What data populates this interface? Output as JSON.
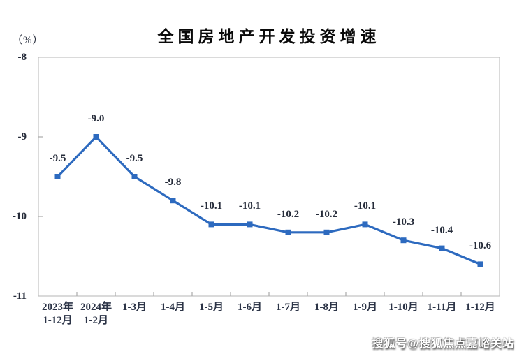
{
  "chart_data": {
    "type": "line",
    "title": "全国房地产开发投资增速",
    "unit": "（%）",
    "xlabel": "",
    "ylabel": "（%）",
    "categories": [
      "2023年\n1-12月",
      "2024年\n1-2月",
      "1-3月",
      "1-4月",
      "1-5月",
      "1-6月",
      "1-7月",
      "1-8月",
      "1-9月",
      "1-10月",
      "1-11月",
      "1-12月"
    ],
    "series": [
      {
        "name": "全国房地产开发投资增速",
        "values": [
          -9.5,
          -9.0,
          -9.5,
          -9.8,
          -10.1,
          -10.1,
          -10.2,
          -10.2,
          -10.1,
          -10.3,
          -10.4,
          -10.6
        ],
        "point_labels": [
          "-9.5",
          "-9.0",
          "-9.5",
          "-9.8",
          "-10.1",
          "-10.1",
          "-10.2",
          "-10.2",
          "-10.1",
          "-10.3",
          "-10.4",
          "-10.6"
        ]
      }
    ],
    "ylim": [
      -11,
      -8
    ],
    "y_ticks": [
      {
        "label": "-8",
        "value": -8
      },
      {
        "label": "-9",
        "value": -9
      },
      {
        "label": "-10",
        "value": -10
      },
      {
        "label": "-11",
        "value": -11
      }
    ],
    "grid": false,
    "legend": "none",
    "marker": "square"
  },
  "colors": {
    "line": "#2D6ABF",
    "marker": "#2D6ABF",
    "text": "#262c3a",
    "border": "#c0c0c0",
    "tick": "#ababab",
    "background": "#ffffff"
  },
  "watermark": {
    "text": "搜狐号@搜狐焦点嘉峪关站"
  }
}
